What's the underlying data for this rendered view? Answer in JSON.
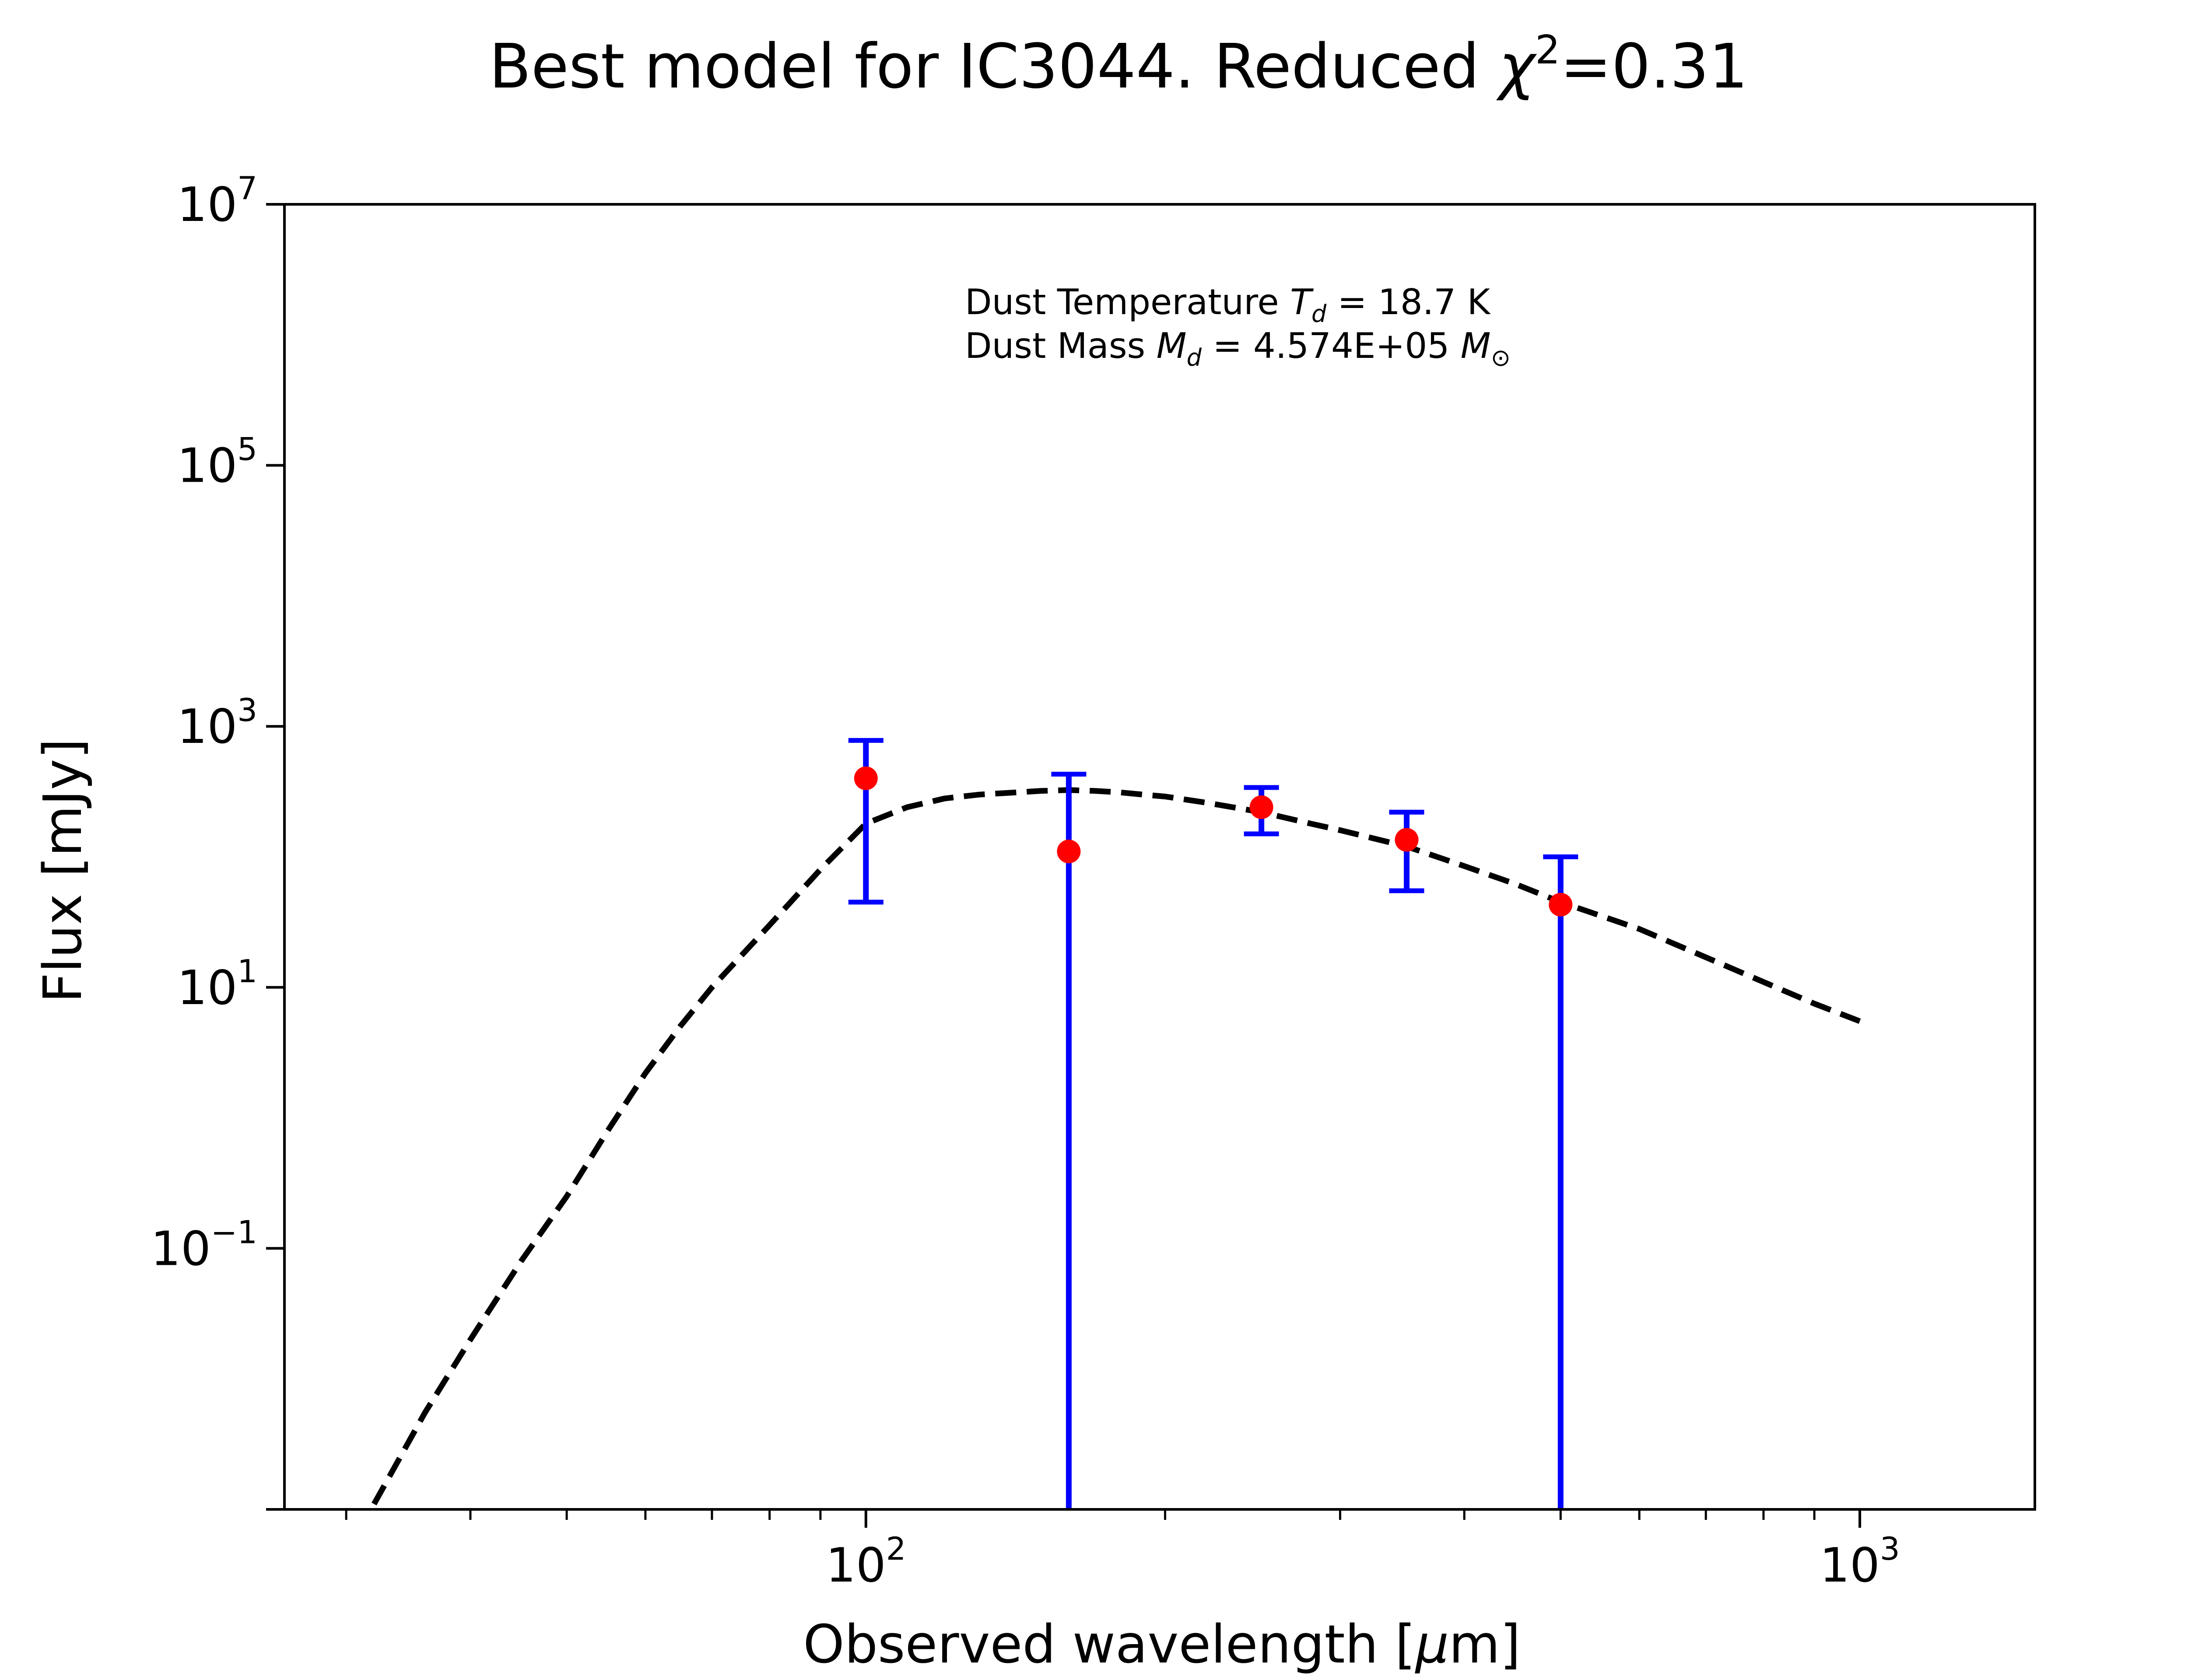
{
  "chart_data": {
    "type": "scatter",
    "title_main": "Best model for IC3044. Reduced ",
    "title_chi": "χ",
    "title_chi_exp": "2",
    "title_value": "=0.31",
    "xlabel_main": "Observed wavelength [",
    "xlabel_mu": "μ",
    "xlabel_end": "m]",
    "ylabel": "Flux [mJy]",
    "x_scale": "log",
    "y_scale": "log",
    "xlim": [
      26,
      1500
    ],
    "ylim": [
      0.001,
      10000000
    ],
    "x_ticks": [
      {
        "base": "10",
        "exp": "2",
        "value": 100
      },
      {
        "base": "10",
        "exp": "3",
        "value": 1000
      }
    ],
    "y_ticks": [
      {
        "base": "10",
        "exp": "7",
        "value": 10000000
      },
      {
        "base": "10",
        "exp": "5",
        "value": 100000
      },
      {
        "base": "10",
        "exp": "3",
        "value": 1000
      },
      {
        "base": "10",
        "exp": "1",
        "value": 10
      },
      {
        "base": "10",
        "exp": "−1",
        "value": 0.1
      }
    ],
    "annotation": {
      "line1_pre": "Dust Temperature ",
      "line1_sym": "T",
      "line1_sub": "d",
      "line1_post": " = 18.7 K",
      "line2_pre": "Dust Mass ",
      "line2_sym": "M",
      "line2_sub": "d",
      "line2_post": " = 4.574E+05 ",
      "line2_unit": "M",
      "line2_unit_sub": "⊙"
    },
    "observations": [
      {
        "wavelength": 100,
        "flux": 400,
        "err_low": 45,
        "err_high": 780
      },
      {
        "wavelength": 160,
        "flux": 110,
        "err_low": 0.001,
        "err_high": 430
      },
      {
        "wavelength": 250,
        "flux": 240,
        "err_low": 150,
        "err_high": 340
      },
      {
        "wavelength": 350,
        "flux": 135,
        "err_low": 55,
        "err_high": 220
      },
      {
        "wavelength": 500,
        "flux": 43,
        "err_low": 0.001,
        "err_high": 100
      }
    ],
    "model": {
      "style": "dashed",
      "wavelength": [
        32,
        36,
        40,
        45,
        50,
        55,
        60,
        65,
        70,
        80,
        90,
        100,
        110,
        120,
        130,
        140,
        150,
        160,
        170,
        180,
        190,
        200,
        220,
        250,
        280,
        300,
        350,
        400,
        450,
        500,
        600,
        700,
        800,
        900,
        1000
      ],
      "flux": [
        0.0011,
        0.0055,
        0.02,
        0.08,
        0.25,
        0.8,
        2.2,
        5,
        10,
        30,
        80,
        180,
        240,
        280,
        300,
        310,
        320,
        325,
        320,
        312,
        300,
        290,
        260,
        220,
        180,
        160,
        120,
        85,
        62,
        45,
        28,
        17,
        11,
        7.5,
        5.5
      ]
    },
    "colors": {
      "marker": "#ff0000",
      "errorbar": "#0000ff",
      "model": "#000000",
      "axes": "#000000"
    },
    "grid": false
  }
}
